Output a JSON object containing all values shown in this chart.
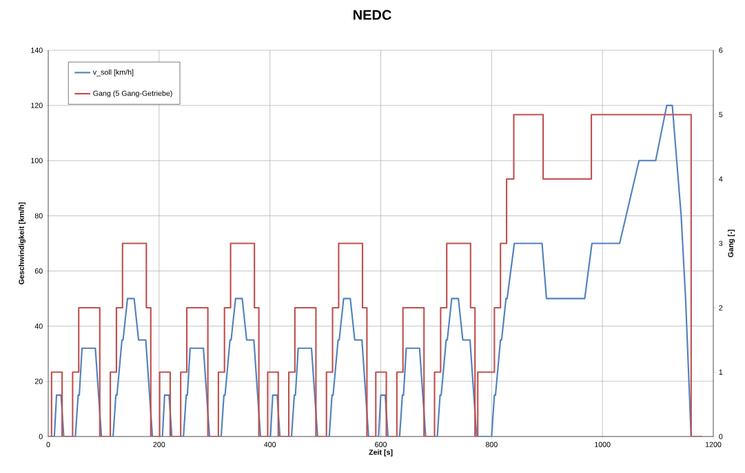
{
  "chart_data": {
    "type": "line",
    "title": "NEDC",
    "xlabel": "Zeit [s]",
    "ylabel": "Geschwindigkeit [km/h]",
    "y2label": "Gang [-]",
    "xlim": [
      0,
      1200
    ],
    "xticks": [
      0,
      200,
      400,
      600,
      800,
      1000,
      1200
    ],
    "ylim": [
      0,
      140
    ],
    "yticks": [
      0,
      20,
      40,
      60,
      80,
      100,
      120,
      140
    ],
    "y2lim": [
      0,
      6
    ],
    "y2ticks": [
      0,
      1,
      2,
      3,
      4,
      5,
      6
    ],
    "grid": true,
    "legend": "top left",
    "series": [
      {
        "name": "v_soll [km/h]",
        "color": "#4f81bd",
        "x": [
          0,
          11,
          15,
          23,
          28,
          49,
          54,
          56,
          61,
          85,
          96,
          117,
          122,
          124,
          133,
          135,
          143,
          155,
          163,
          176,
          188,
          195,
          206,
          210,
          218,
          223,
          244,
          249,
          251,
          256,
          280,
          291,
          312,
          317,
          319,
          328,
          330,
          338,
          350,
          358,
          371,
          383,
          390,
          401,
          405,
          413,
          418,
          439,
          444,
          446,
          451,
          475,
          486,
          507,
          512,
          514,
          523,
          525,
          533,
          545,
          553,
          566,
          578,
          585,
          596,
          600,
          608,
          613,
          634,
          639,
          641,
          646,
          670,
          681,
          702,
          707,
          709,
          718,
          720,
          728,
          740,
          748,
          761,
          773,
          780,
          800,
          805,
          807,
          816,
          818,
          826,
          828,
          841,
          891,
          899,
          968,
          981,
          1031,
          1066,
          1096,
          1116,
          1126,
          1142,
          1150,
          1160,
          1180
        ],
        "values": [
          0,
          0,
          15,
          15,
          0,
          0,
          15,
          15,
          32,
          32,
          0,
          0,
          15,
          15,
          35,
          35,
          50,
          50,
          35,
          35,
          0,
          0,
          0,
          15,
          15,
          0,
          0,
          15,
          15,
          32,
          32,
          0,
          0,
          15,
          15,
          35,
          35,
          50,
          50,
          35,
          35,
          0,
          0,
          0,
          15,
          15,
          0,
          0,
          15,
          15,
          32,
          32,
          0,
          0,
          15,
          15,
          35,
          35,
          50,
          50,
          35,
          35,
          0,
          0,
          0,
          15,
          15,
          0,
          0,
          15,
          15,
          32,
          32,
          0,
          0,
          15,
          15,
          35,
          35,
          50,
          50,
          35,
          35,
          0,
          0,
          0,
          15,
          15,
          35,
          35,
          50,
          50,
          70,
          70,
          50,
          50,
          70,
          70,
          100,
          100,
          120,
          120,
          80,
          50,
          0,
          0
        ]
      },
      {
        "name": "Gang (5 Gang-Getriebe)",
        "color": "#c0504d",
        "type": "step",
        "axis": "y2",
        "x": [
          0,
          6,
          25,
          44,
          55,
          93,
          112,
          123,
          134,
          177,
          185,
          201,
          220,
          239,
          250,
          288,
          307,
          318,
          329,
          372,
          380,
          396,
          415,
          434,
          445,
          483,
          502,
          513,
          524,
          567,
          575,
          591,
          610,
          629,
          640,
          678,
          697,
          708,
          719,
          762,
          770,
          775,
          805,
          816,
          827,
          840,
          893,
          980,
          1160,
          1180
        ],
        "values": [
          0,
          1,
          0,
          1,
          2,
          0,
          1,
          2,
          3,
          2,
          0,
          1,
          0,
          1,
          2,
          0,
          1,
          2,
          3,
          2,
          0,
          1,
          0,
          1,
          2,
          0,
          1,
          2,
          3,
          2,
          0,
          1,
          0,
          1,
          2,
          0,
          1,
          2,
          3,
          2,
          0,
          1,
          2,
          3,
          4,
          5,
          4,
          5,
          0,
          0
        ]
      }
    ]
  }
}
